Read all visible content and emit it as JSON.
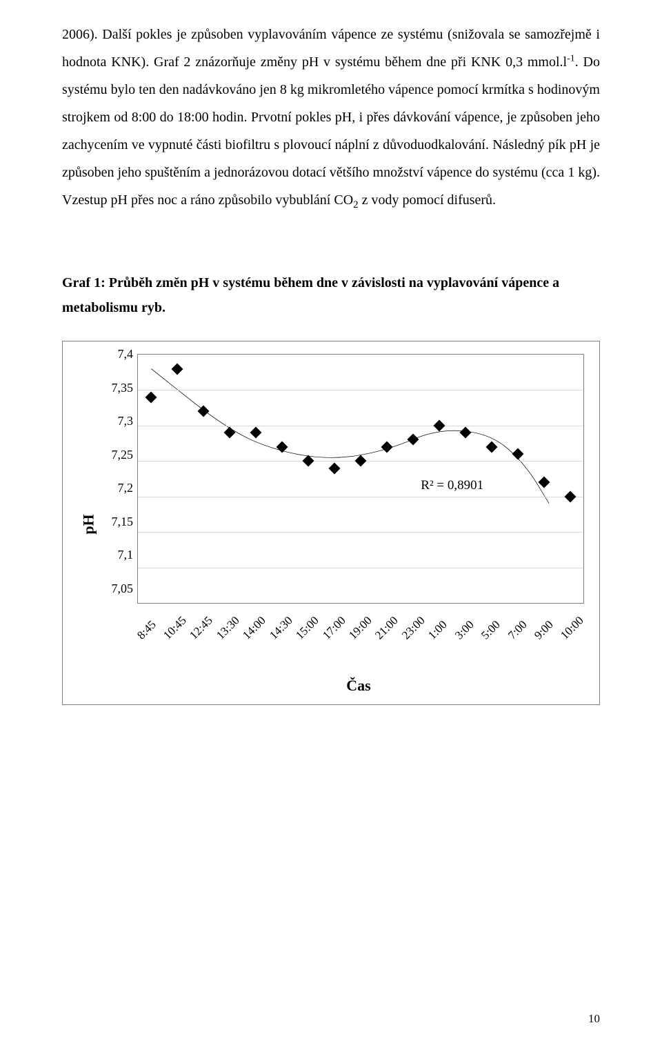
{
  "body": {
    "p1_a": "2006). Další pokles je způsoben vyplavováním vápence ze systému (snižovala se samozřejmě i hodnota KNK). Graf 2 znázorňuje změny pH v systému během dne při KNK 0,3 mmol.l",
    "p1_sup": "-1",
    "p1_b": ". Do systému bylo ten den nadávkováno jen 8 kg mikromletého vápence pomocí krmítka s hodinovým strojkem od 8:00 do 18:00 hodin. Prvotní pokles pH, i přes dávkování vápence, je způsoben jeho zachycením ve vypnuté části biofiltru s plovoucí náplní z důvoduodkalování. Následný pík pH je způsoben jeho spuštěním a jednorázovou dotací většího množství vápence do systému (cca 1 kg). Vzestup pH přes noc a ráno způsobilo vybublání CO",
    "p1_sub": "2",
    "p1_c": " z vody pomocí difuserů."
  },
  "caption": "Graf 1: Průběh změn pH v systému během dne v závislosti na vyplavování vápence a metabolismu ryb.",
  "chart": {
    "type": "scatter",
    "ylabel": "pH",
    "xlabel": "Čas",
    "ylim": [
      7.05,
      7.4
    ],
    "ytick_step": 0.05,
    "yticks": [
      "7,4",
      "7,35",
      "7,3",
      "7,25",
      "7,2",
      "7,15",
      "7,1",
      "7,05"
    ],
    "xticks": [
      "8:45",
      "10:45",
      "12:45",
      "13:30",
      "14:00",
      "14:30",
      "15:00",
      "17:00",
      "19:00",
      "21:00",
      "23:00",
      "1:00",
      "3:00",
      "5:00",
      "7:00",
      "9:00",
      "10:00"
    ],
    "points": [
      {
        "xi": 0,
        "y": 7.34
      },
      {
        "xi": 1,
        "y": 7.38
      },
      {
        "xi": 2,
        "y": 7.32
      },
      {
        "xi": 3,
        "y": 7.29
      },
      {
        "xi": 4,
        "y": 7.29
      },
      {
        "xi": 5,
        "y": 7.27
      },
      {
        "xi": 6,
        "y": 7.25
      },
      {
        "xi": 7,
        "y": 7.24
      },
      {
        "xi": 8,
        "y": 7.25
      },
      {
        "xi": 9,
        "y": 7.27
      },
      {
        "xi": 10,
        "y": 7.28
      },
      {
        "xi": 11,
        "y": 7.3
      },
      {
        "xi": 12,
        "y": 7.29
      },
      {
        "xi": 13,
        "y": 7.27
      },
      {
        "xi": 14,
        "y": 7.26
      },
      {
        "xi": 15,
        "y": 7.22
      },
      {
        "xi": 16,
        "y": 7.2
      }
    ],
    "trend_segments": [
      {
        "from_xi": 0,
        "from_y": 7.38,
        "to_xi": 3,
        "to_y": 7.292
      },
      {
        "from_xi": 3,
        "from_y": 7.292,
        "to_xi": 5,
        "to_y": 7.262
      },
      {
        "from_xi": 5,
        "from_y": 7.262,
        "to_xi": 7,
        "to_y": 7.252
      },
      {
        "from_xi": 7,
        "from_y": 7.252,
        "to_xi": 9,
        "to_y": 7.265
      },
      {
        "from_xi": 9,
        "from_y": 7.265,
        "to_xi": 11,
        "to_y": 7.296
      },
      {
        "from_xi": 11,
        "from_y": 7.296,
        "to_xi": 13,
        "to_y": 7.288
      },
      {
        "from_xi": 13,
        "from_y": 7.288,
        "to_xi": 14.3,
        "to_y": 7.245
      },
      {
        "from_xi": 14.3,
        "from_y": 7.245,
        "to_xi": 15.2,
        "to_y": 7.19
      }
    ],
    "rsq_label": "R² = 0,8901",
    "rsq_pos_xi": 10.3,
    "rsq_pos_y": 7.226,
    "marker_color": "#000000",
    "background_color": "#ffffff",
    "grid_color": "#d9d9d9",
    "border_color": "#7f7f7f",
    "trend_color": "#000000",
    "trend_width": 2,
    "ytick_fontsize": 18,
    "xtick_fontsize": 17,
    "axis_label_fontsize": 22
  },
  "page_number": "10"
}
